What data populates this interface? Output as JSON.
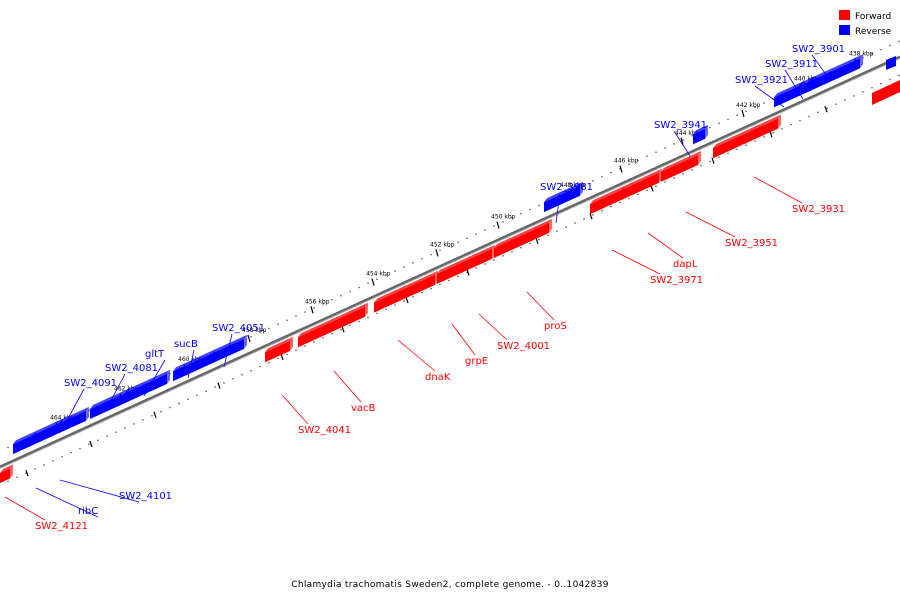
{
  "caption": "Chlamydia trachomatis Sweden2, complete genome. - 0..1042839",
  "legend": {
    "forward": {
      "label": "Forward",
      "color": "#ff0000"
    },
    "reverse": {
      "label": "Reverse",
      "color": "#0000ff"
    }
  },
  "colors": {
    "forward": "#ff0000",
    "reverse": "#0000ff",
    "backbone": "#777777"
  },
  "ticks": [
    "438 kbp",
    "440 kbp",
    "442 kbp",
    "444 kbp",
    "446 kbp",
    "448 kbp",
    "450 kbp",
    "452 kbp",
    "454 kbp",
    "456 kbp",
    "458 kbp",
    "460 kbp",
    "462 kbp",
    "464 kbp"
  ],
  "genes": [
    {
      "name": "SW2_3901",
      "strand": "reverse"
    },
    {
      "name": "SW2_3911",
      "strand": "reverse"
    },
    {
      "name": "SW2_3921",
      "strand": "reverse"
    },
    {
      "name": "SW2_3941",
      "strand": "reverse"
    },
    {
      "name": "SW2_3981",
      "strand": "reverse"
    },
    {
      "name": "SW2_4051",
      "strand": "reverse"
    },
    {
      "name": "sucB",
      "strand": "reverse"
    },
    {
      "name": "gltT",
      "strand": "reverse"
    },
    {
      "name": "SW2_4081",
      "strand": "reverse"
    },
    {
      "name": "SW2_4091",
      "strand": "reverse"
    },
    {
      "name": "SW2_4101",
      "strand": "reverse"
    },
    {
      "name": "ribC",
      "strand": "reverse"
    },
    {
      "name": "SW2_3931",
      "strand": "forward"
    },
    {
      "name": "SW2_3951",
      "strand": "forward"
    },
    {
      "name": "dapL",
      "strand": "forward"
    },
    {
      "name": "SW2_3971",
      "strand": "forward"
    },
    {
      "name": "proS",
      "strand": "forward"
    },
    {
      "name": "SW2_4001",
      "strand": "forward"
    },
    {
      "name": "grpE",
      "strand": "forward"
    },
    {
      "name": "dnaK",
      "strand": "forward"
    },
    {
      "name": "vacB",
      "strand": "forward"
    },
    {
      "name": "SW2_4041",
      "strand": "forward"
    },
    {
      "name": "SW2_4121",
      "strand": "forward"
    }
  ]
}
